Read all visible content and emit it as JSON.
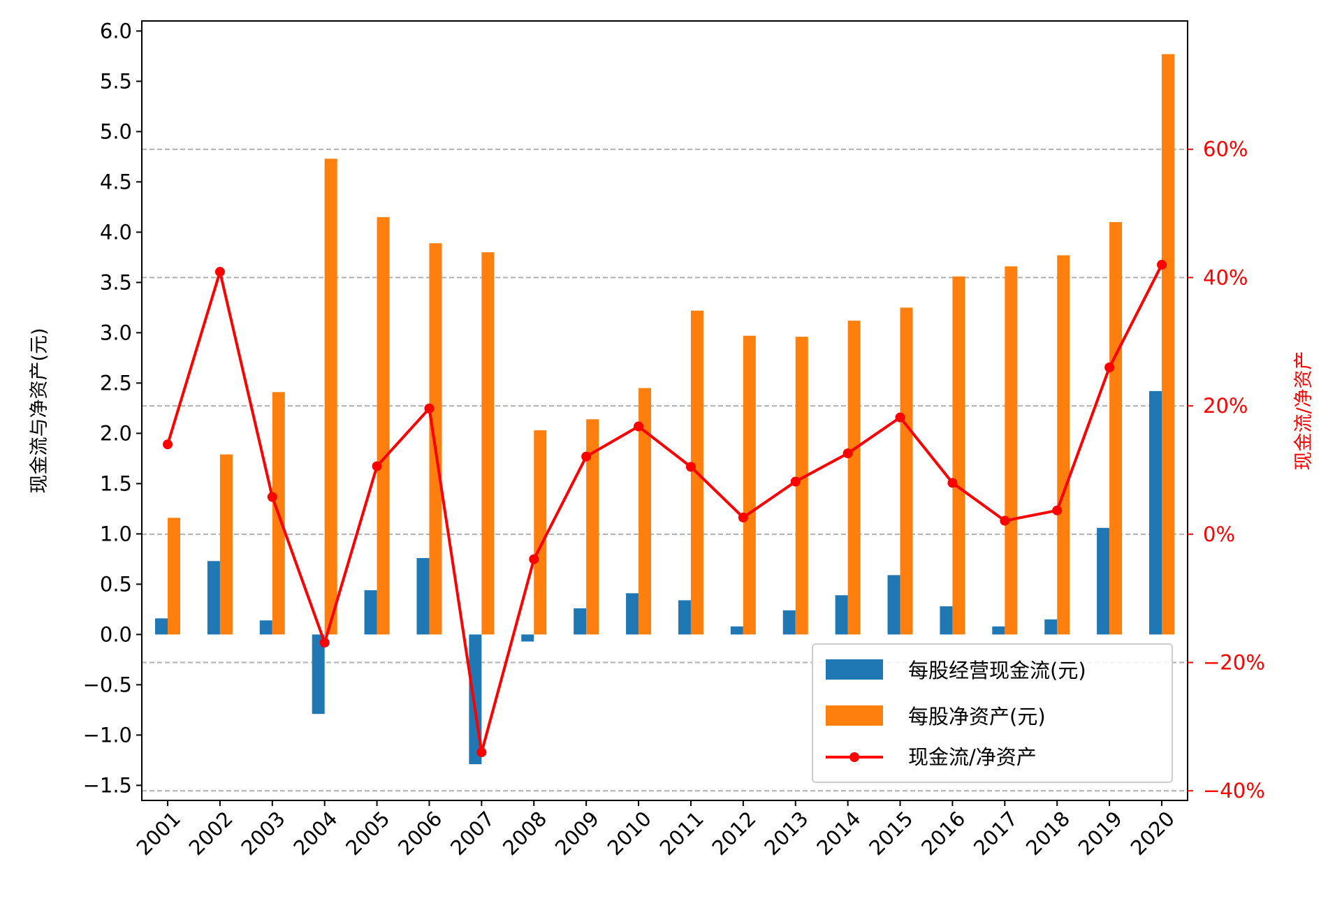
{
  "chart_data": {
    "type": "bar",
    "categories": [
      "2001",
      "2002",
      "2003",
      "2004",
      "2005",
      "2006",
      "2007",
      "2008",
      "2009",
      "2010",
      "2011",
      "2012",
      "2013",
      "2014",
      "2015",
      "2016",
      "2017",
      "2018",
      "2019",
      "2020"
    ],
    "series": [
      {
        "name": "每股经营现金流(元)",
        "type": "bar",
        "axis": "left",
        "color": "#1f77b4",
        "values": [
          0.16,
          0.73,
          0.14,
          -0.79,
          0.44,
          0.76,
          -1.29,
          -0.07,
          0.26,
          0.41,
          0.34,
          0.08,
          0.24,
          0.39,
          0.59,
          0.28,
          0.08,
          0.15,
          1.06,
          2.42
        ]
      },
      {
        "name": "每股净资产(元)",
        "type": "bar",
        "axis": "left",
        "color": "#ff7f0e",
        "values": [
          1.16,
          1.79,
          2.41,
          4.73,
          4.15,
          3.89,
          3.8,
          2.03,
          2.14,
          2.45,
          3.22,
          2.97,
          2.96,
          3.12,
          3.25,
          3.56,
          3.66,
          3.77,
          4.1,
          5.77
        ]
      },
      {
        "name": "现金流/净资产",
        "type": "line",
        "axis": "right",
        "color": "#ff0000",
        "values": [
          14.0,
          40.9,
          5.8,
          -16.9,
          10.6,
          19.6,
          -34.0,
          -3.9,
          12.1,
          16.8,
          10.5,
          2.6,
          8.2,
          12.6,
          18.2,
          8.0,
          2.1,
          3.7,
          26.0,
          42.0
        ]
      }
    ],
    "ylabel": "现金流与净资产(元)",
    "ylabel_right": "现金流/净资产",
    "ylim": [
      -1.65,
      6.1
    ],
    "yticks": [
      "−1.5",
      "−1.0",
      "−0.5",
      "0.0",
      "0.5",
      "1.0",
      "1.5",
      "2.0",
      "2.5",
      "3.0",
      "3.5",
      "4.0",
      "4.5",
      "5.0",
      "5.5",
      "6.0"
    ],
    "ylim_right": [
      -41.5,
      80.0
    ],
    "yticks_right": [
      "−40%",
      "−20%",
      "0%",
      "20%",
      "40%",
      "60%"
    ],
    "right_axis_color": "#ff0000",
    "grid": "horizontal dashed at right-axis ticks",
    "legend_position": "lower-right"
  }
}
